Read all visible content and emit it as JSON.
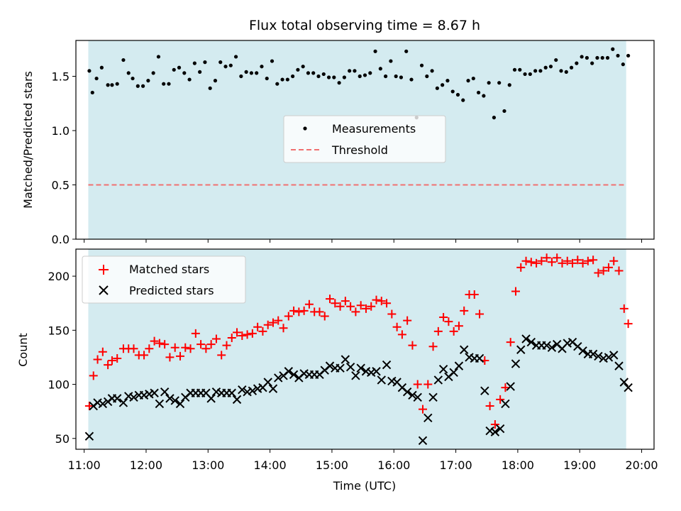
{
  "chart_data": [
    {
      "type": "scatter",
      "title": "Flux total observing time = 8.67 h",
      "xlabel": "",
      "ylabel": "Matched/Predicted stars",
      "ylim": [
        0,
        1.83
      ],
      "xlim": [
        "10:52",
        "20:12"
      ],
      "yticks": [
        "0.0",
        "0.5",
        "1.0",
        "1.5"
      ],
      "legend": {
        "placement": "center",
        "entries": [
          "Measurements",
          "Threshold"
        ]
      },
      "shaded_region": {
        "x_start": "11:04",
        "x_end": "19:45",
        "color": "#d4ebf0"
      },
      "threshold": {
        "name": "Threshold",
        "value": 0.5,
        "color": "#f07070"
      },
      "series": [
        {
          "name": "Measurements",
          "color": "#000000",
          "x": [
            "11:05",
            "11:08",
            "11:12",
            "11:17",
            "11:23",
            "11:27",
            "11:32",
            "11:38",
            "11:43",
            "11:47",
            "11:52",
            "11:57",
            "12:02",
            "12:07",
            "12:12",
            "12:17",
            "12:22",
            "12:27",
            "12:32",
            "12:37",
            "12:42",
            "12:47",
            "12:52",
            "12:57",
            "13:02",
            "13:07",
            "13:12",
            "13:17",
            "13:22",
            "13:27",
            "13:32",
            "13:37",
            "13:42",
            "13:47",
            "13:52",
            "13:57",
            "14:02",
            "14:07",
            "14:12",
            "14:17",
            "14:22",
            "14:27",
            "14:32",
            "14:37",
            "14:42",
            "14:47",
            "14:52",
            "14:57",
            "15:02",
            "15:07",
            "15:12",
            "15:17",
            "15:22",
            "15:27",
            "15:32",
            "15:37",
            "15:42",
            "15:47",
            "15:52",
            "15:57",
            "16:02",
            "16:07",
            "16:12",
            "16:17",
            "16:22",
            "16:27",
            "16:32",
            "16:37",
            "16:42",
            "16:47",
            "16:52",
            "16:57",
            "17:02",
            "17:07",
            "17:12",
            "17:17",
            "17:22",
            "17:27",
            "17:32",
            "17:37",
            "17:42",
            "17:47",
            "17:52",
            "17:57",
            "18:02",
            "18:07",
            "18:12",
            "18:17",
            "18:22",
            "18:27",
            "18:32",
            "18:37",
            "18:42",
            "18:47",
            "18:52",
            "18:57",
            "19:02",
            "19:07",
            "19:12",
            "19:17",
            "19:22",
            "19:27",
            "19:32",
            "19:37",
            "19:42",
            "19:47"
          ],
          "y": [
            1.55,
            1.35,
            1.48,
            1.58,
            1.42,
            1.42,
            1.43,
            1.65,
            1.53,
            1.48,
            1.41,
            1.41,
            1.46,
            1.53,
            1.68,
            1.43,
            1.43,
            1.56,
            1.58,
            1.53,
            1.47,
            1.62,
            1.54,
            1.63,
            1.39,
            1.46,
            1.63,
            1.59,
            1.6,
            1.68,
            1.5,
            1.54,
            1.53,
            1.53,
            1.59,
            1.48,
            1.64,
            1.43,
            1.47,
            1.47,
            1.5,
            1.56,
            1.59,
            1.53,
            1.53,
            1.5,
            1.52,
            1.49,
            1.49,
            1.44,
            1.49,
            1.55,
            1.55,
            1.5,
            1.51,
            1.53,
            1.73,
            1.57,
            1.5,
            1.64,
            1.5,
            1.49,
            1.73,
            1.47,
            1.12,
            1.6,
            1.5,
            1.55,
            1.39,
            1.42,
            1.46,
            1.36,
            1.33,
            1.28,
            1.46,
            1.48,
            1.35,
            1.32,
            1.44,
            1.12,
            1.44,
            1.18,
            1.42,
            1.56,
            1.56,
            1.52,
            1.52,
            1.55,
            1.55,
            1.58,
            1.59,
            1.65,
            1.55,
            1.54,
            1.58,
            1.62,
            1.68,
            1.67,
            1.62,
            1.67,
            1.67,
            1.67,
            1.75,
            1.69,
            1.61,
            1.69
          ]
        }
      ]
    },
    {
      "type": "scatter",
      "title": "",
      "xlabel": "Time (UTC)",
      "ylabel": "Count",
      "ylim": [
        40,
        225
      ],
      "xlim": [
        "10:52",
        "20:12"
      ],
      "xticks": [
        "11:00",
        "12:00",
        "13:00",
        "14:00",
        "15:00",
        "16:00",
        "17:00",
        "18:00",
        "19:00",
        "20:00"
      ],
      "yticks": [
        "50",
        "100",
        "150",
        "200"
      ],
      "legend": {
        "placement": "top-left",
        "entries": [
          "Matched stars",
          "Predicted stars"
        ]
      },
      "shaded_region": {
        "x_start": "11:04",
        "x_end": "19:45",
        "color": "#d4ebf0"
      },
      "series": [
        {
          "name": "Matched stars",
          "marker": "plus",
          "color": "#ff0000",
          "x": [
            "11:05",
            "11:09",
            "11:13",
            "11:18",
            "11:23",
            "11:27",
            "11:32",
            "11:38",
            "11:43",
            "11:48",
            "11:53",
            "11:58",
            "12:03",
            "12:08",
            "12:13",
            "12:18",
            "12:23",
            "12:28",
            "12:33",
            "12:38",
            "12:43",
            "12:48",
            "12:53",
            "12:58",
            "13:03",
            "13:08",
            "13:13",
            "13:18",
            "13:23",
            "13:28",
            "13:33",
            "13:38",
            "13:43",
            "13:48",
            "13:53",
            "13:58",
            "14:03",
            "14:08",
            "14:13",
            "14:18",
            "14:23",
            "14:28",
            "14:33",
            "14:38",
            "14:43",
            "14:48",
            "14:53",
            "14:58",
            "15:03",
            "15:08",
            "15:13",
            "15:18",
            "15:23",
            "15:28",
            "15:33",
            "15:38",
            "15:43",
            "15:48",
            "15:53",
            "15:58",
            "16:03",
            "16:08",
            "16:13",
            "16:18",
            "16:23",
            "16:28",
            "16:33",
            "16:38",
            "16:43",
            "16:48",
            "16:53",
            "16:58",
            "17:03",
            "17:08",
            "17:13",
            "17:18",
            "17:23",
            "17:28",
            "17:33",
            "17:38",
            "17:43",
            "17:48",
            "17:53",
            "17:58",
            "18:03",
            "18:08",
            "18:13",
            "18:18",
            "18:23",
            "18:28",
            "18:33",
            "18:38",
            "18:43",
            "18:48",
            "18:53",
            "18:58",
            "19:03",
            "19:08",
            "19:13",
            "19:18",
            "19:23",
            "19:28",
            "19:33",
            "19:38",
            "19:43",
            "19:47"
          ],
          "y": [
            80,
            108,
            123,
            130,
            118,
            122,
            124,
            133,
            133,
            133,
            127,
            127,
            133,
            140,
            138,
            137,
            125,
            134,
            126,
            134,
            133,
            147,
            137,
            133,
            137,
            142,
            127,
            136,
            143,
            148,
            145,
            146,
            147,
            153,
            149,
            155,
            157,
            159,
            152,
            163,
            168,
            167,
            168,
            174,
            167,
            167,
            163,
            179,
            175,
            172,
            177,
            172,
            167,
            173,
            170,
            172,
            178,
            177,
            175,
            165,
            153,
            146,
            159,
            136,
            100,
            77,
            100,
            135,
            149,
            162,
            158,
            149,
            154,
            168,
            183,
            183,
            165,
            122,
            80,
            63,
            86,
            97,
            139,
            186,
            208,
            214,
            213,
            212,
            214,
            217,
            213,
            217,
            212,
            214,
            212,
            215,
            212,
            214,
            215,
            203,
            205,
            208,
            214,
            205,
            170,
            156
          ]
        },
        {
          "name": "Predicted stars",
          "marker": "x",
          "color": "#000000",
          "x": [
            "11:05",
            "11:09",
            "11:13",
            "11:18",
            "11:23",
            "11:27",
            "11:32",
            "11:38",
            "11:43",
            "11:48",
            "11:53",
            "11:58",
            "12:03",
            "12:08",
            "12:13",
            "12:18",
            "12:23",
            "12:28",
            "12:33",
            "12:38",
            "12:43",
            "12:48",
            "12:53",
            "12:58",
            "13:03",
            "13:08",
            "13:13",
            "13:18",
            "13:23",
            "13:28",
            "13:33",
            "13:38",
            "13:43",
            "13:48",
            "13:53",
            "13:58",
            "14:03",
            "14:08",
            "14:13",
            "14:18",
            "14:23",
            "14:28",
            "14:33",
            "14:38",
            "14:43",
            "14:48",
            "14:53",
            "14:58",
            "15:03",
            "15:08",
            "15:13",
            "15:18",
            "15:23",
            "15:28",
            "15:33",
            "15:38",
            "15:43",
            "15:48",
            "15:53",
            "15:58",
            "16:03",
            "16:08",
            "16:13",
            "16:18",
            "16:23",
            "16:28",
            "16:33",
            "16:38",
            "16:43",
            "16:48",
            "16:53",
            "16:58",
            "17:03",
            "17:08",
            "17:13",
            "17:18",
            "17:23",
            "17:28",
            "17:33",
            "17:38",
            "17:43",
            "17:48",
            "17:53",
            "17:58",
            "18:03",
            "18:08",
            "18:13",
            "18:18",
            "18:23",
            "18:28",
            "18:33",
            "18:38",
            "18:43",
            "18:48",
            "18:53",
            "18:58",
            "19:03",
            "19:08",
            "19:13",
            "19:18",
            "19:23",
            "19:28",
            "19:33",
            "19:38",
            "19:43",
            "19:47"
          ],
          "y": [
            52,
            80,
            83,
            82,
            84,
            87,
            87,
            83,
            89,
            88,
            90,
            90,
            91,
            92,
            82,
            93,
            87,
            85,
            82,
            88,
            92,
            92,
            92,
            92,
            87,
            93,
            92,
            92,
            92,
            86,
            95,
            93,
            94,
            96,
            97,
            102,
            96,
            106,
            108,
            112,
            109,
            106,
            110,
            109,
            109,
            109,
            113,
            117,
            115,
            115,
            123,
            116,
            108,
            115,
            112,
            111,
            112,
            104,
            118,
            103,
            102,
            97,
            93,
            90,
            88,
            48,
            69,
            88,
            104,
            114,
            107,
            111,
            117,
            132,
            125,
            124,
            124,
            94,
            57,
            56,
            59,
            82,
            98,
            119,
            132,
            142,
            139,
            136,
            136,
            136,
            134,
            137,
            133,
            138,
            139,
            135,
            131,
            128,
            128,
            126,
            124,
            125,
            127,
            117,
            102,
            97
          ]
        }
      ]
    }
  ]
}
